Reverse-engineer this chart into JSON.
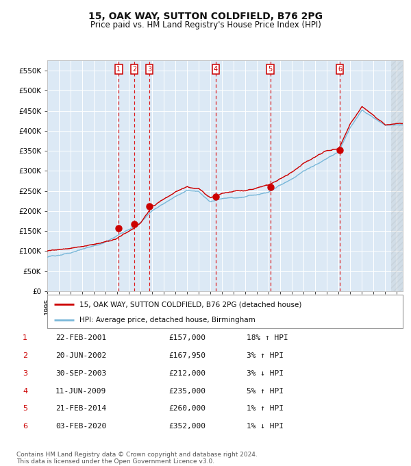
{
  "title": "15, OAK WAY, SUTTON COLDFIELD, B76 2PG",
  "subtitle": "Price paid vs. HM Land Registry's House Price Index (HPI)",
  "background_color": "#ffffff",
  "plot_bg_color": "#dce9f5",
  "grid_color": "#ffffff",
  "ylim": [
    0,
    575000
  ],
  "yticks": [
    0,
    50000,
    100000,
    150000,
    200000,
    250000,
    300000,
    350000,
    400000,
    450000,
    500000,
    550000
  ],
  "ytick_labels": [
    "£0",
    "£50K",
    "£100K",
    "£150K",
    "£200K",
    "£250K",
    "£300K",
    "£350K",
    "£400K",
    "£450K",
    "£500K",
    "£550K"
  ],
  "sale_dates_x": [
    2001.13,
    2002.47,
    2003.75,
    2009.44,
    2014.14,
    2020.09
  ],
  "sale_prices_y": [
    157000,
    167950,
    212000,
    235000,
    260000,
    352000
  ],
  "sale_labels": [
    "1",
    "2",
    "3",
    "4",
    "5",
    "6"
  ],
  "vline_x": [
    2001.13,
    2002.47,
    2003.75,
    2009.44,
    2014.14,
    2020.09
  ],
  "hpi_line_color": "#7ab8d9",
  "price_line_color": "#cc0000",
  "sale_dot_color": "#cc0000",
  "vline_color": "#dd0000",
  "legend_label_price": "15, OAK WAY, SUTTON COLDFIELD, B76 2PG (detached house)",
  "legend_label_hpi": "HPI: Average price, detached house, Birmingham",
  "table_rows": [
    [
      "1",
      "22-FEB-2001",
      "£157,000",
      "18% ↑ HPI"
    ],
    [
      "2",
      "20-JUN-2002",
      "£167,950",
      "3% ↑ HPI"
    ],
    [
      "3",
      "30-SEP-2003",
      "£212,000",
      "3% ↓ HPI"
    ],
    [
      "4",
      "11-JUN-2009",
      "£235,000",
      "5% ↑ HPI"
    ],
    [
      "5",
      "21-FEB-2014",
      "£260,000",
      "1% ↑ HPI"
    ],
    [
      "6",
      "03-FEB-2020",
      "£352,000",
      "1% ↓ HPI"
    ]
  ],
  "footer_text": "Contains HM Land Registry data © Crown copyright and database right 2024.\nThis data is licensed under the Open Government Licence v3.0.",
  "xstart": 1995.0,
  "xend": 2025.5,
  "hpi_anchors_x": [
    1995,
    1996,
    1997,
    1998,
    1999,
    2000,
    2001,
    2002,
    2003,
    2004,
    2005,
    2006,
    2007,
    2008,
    2009,
    2010,
    2011,
    2012,
    2013,
    2014,
    2015,
    2016,
    2017,
    2018,
    2019,
    2020,
    2021,
    2022,
    2023,
    2024,
    2025
  ],
  "hpi_anchors_y": [
    85000,
    90000,
    96000,
    105000,
    115000,
    125000,
    140000,
    155000,
    173000,
    202000,
    220000,
    238000,
    252000,
    248000,
    222000,
    232000,
    234000,
    237000,
    244000,
    253000,
    267000,
    283000,
    303000,
    318000,
    333000,
    348000,
    408000,
    452000,
    432000,
    412000,
    412000
  ],
  "price_anchors_x": [
    1995,
    1996,
    1997,
    1998,
    1999,
    2000,
    2001,
    2002,
    2003,
    2004,
    2005,
    2006,
    2007,
    2008,
    2009,
    2010,
    2011,
    2012,
    2013,
    2014,
    2015,
    2016,
    2017,
    2018,
    2019,
    2020,
    2021,
    2022,
    2023,
    2024,
    2025
  ],
  "price_anchors_y": [
    100000,
    105000,
    110000,
    115000,
    118000,
    125000,
    135000,
    150000,
    170000,
    215000,
    232000,
    248000,
    260000,
    255000,
    232000,
    243000,
    246000,
    249000,
    254000,
    260000,
    275000,
    293000,
    315000,
    332000,
    347000,
    352000,
    415000,
    458000,
    438000,
    416000,
    416000
  ]
}
